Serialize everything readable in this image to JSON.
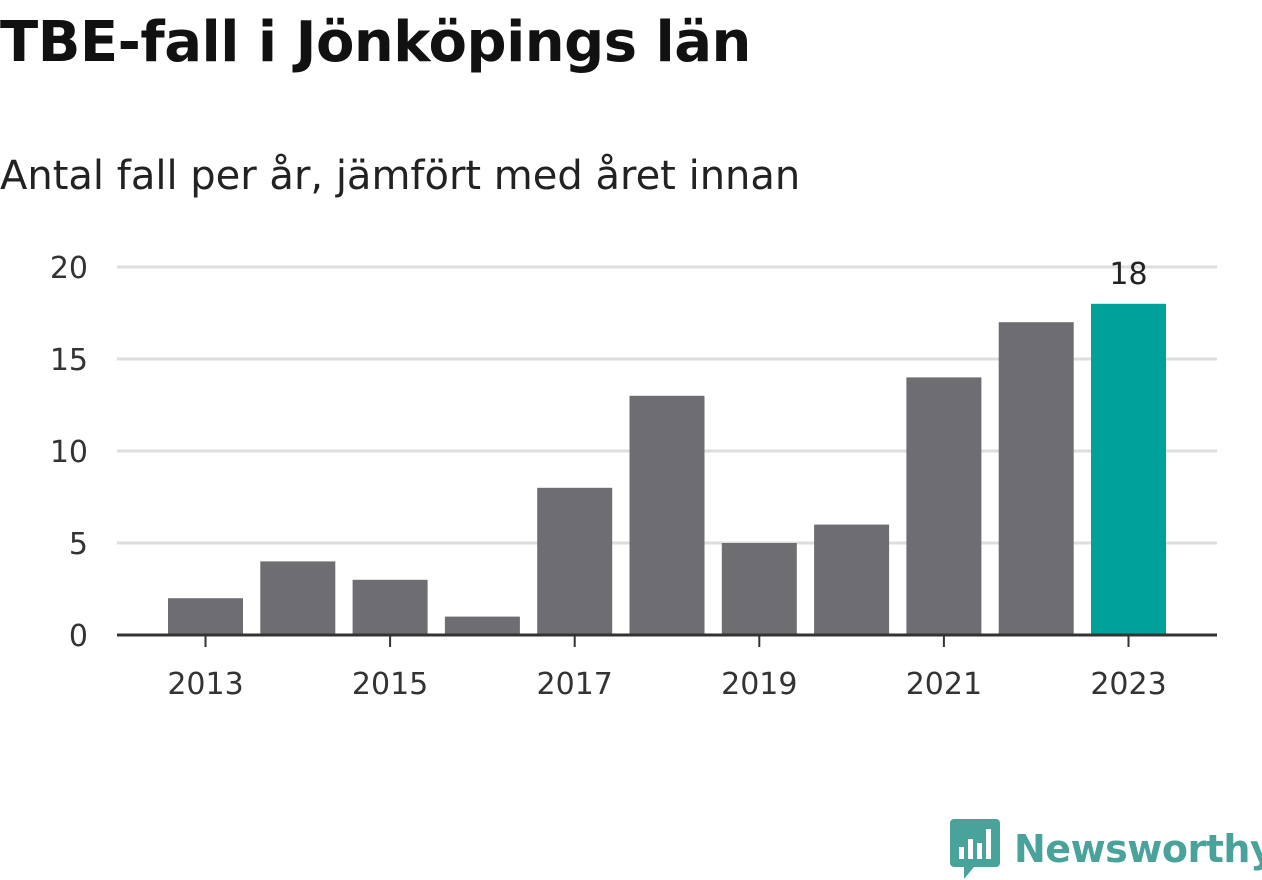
{
  "header": {
    "title": "TBE-fall i Jönköpings län",
    "subtitle": "Antal fall per år, jämfört med året innan"
  },
  "brand": {
    "name": "Newsworthy",
    "icon": "newsworthy-logo-icon",
    "color": "#49a39b"
  },
  "chart_data": {
    "type": "bar",
    "title": "TBE-fall i Jönköpings län",
    "subtitle": "Antal fall per år, jämfört med året innan",
    "categories": [
      "2013",
      "2014",
      "2015",
      "2016",
      "2017",
      "2018",
      "2019",
      "2020",
      "2021",
      "2022",
      "2023"
    ],
    "values": [
      2,
      4,
      3,
      1,
      8,
      13,
      5,
      6,
      14,
      17,
      18
    ],
    "x_tick_labels": [
      "2013",
      "2015",
      "2017",
      "2019",
      "2021",
      "2023"
    ],
    "y_ticks": [
      0,
      5,
      10,
      15,
      20
    ],
    "ylim": [
      0,
      20
    ],
    "xlabel": "",
    "ylabel": "",
    "grid": true,
    "legend": "none",
    "bar_color": "#6e6d72",
    "highlight_color": "#00a19a",
    "highlight_category": "2023",
    "data_labels": [
      {
        "category": "2023",
        "value": 18
      }
    ]
  }
}
